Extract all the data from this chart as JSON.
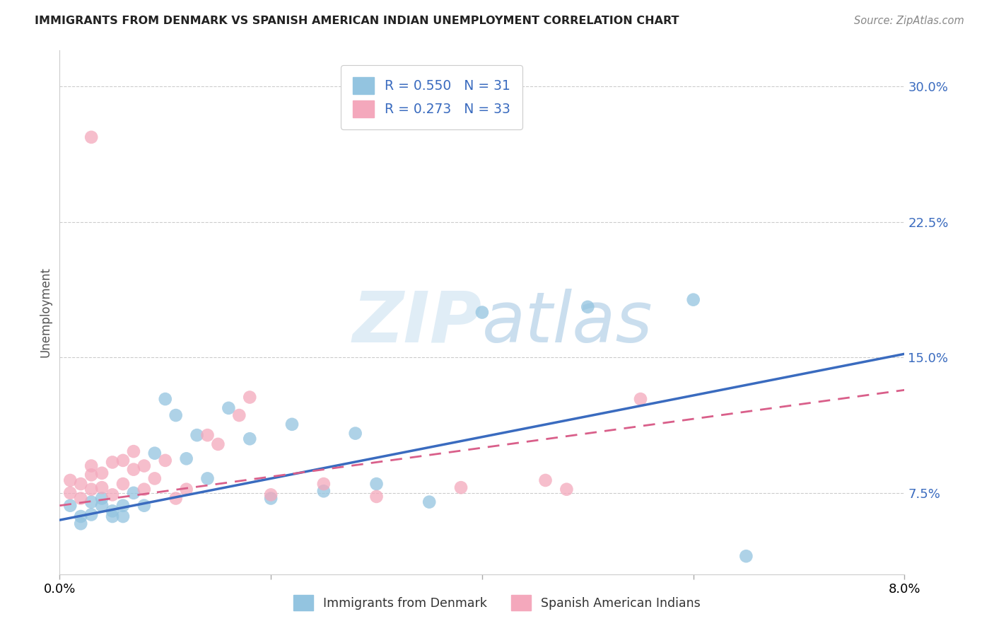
{
  "title": "IMMIGRANTS FROM DENMARK VS SPANISH AMERICAN INDIAN UNEMPLOYMENT CORRELATION CHART",
  "source": "Source: ZipAtlas.com",
  "ylabel": "Unemployment",
  "y_ticks": [
    0.075,
    0.15,
    0.225,
    0.3
  ],
  "y_tick_labels": [
    "7.5%",
    "15.0%",
    "22.5%",
    "30.0%"
  ],
  "x_range": [
    0.0,
    0.08
  ],
  "y_range": [
    0.03,
    0.32
  ],
  "color_blue": "#93c4e0",
  "color_pink": "#f4a8bc",
  "line_blue": "#3a6bbf",
  "line_pink": "#d95f8a",
  "watermark_zip": "ZIP",
  "watermark_atlas": "atlas",
  "denmark_x": [
    0.001,
    0.002,
    0.002,
    0.003,
    0.003,
    0.004,
    0.004,
    0.005,
    0.005,
    0.006,
    0.006,
    0.007,
    0.008,
    0.009,
    0.01,
    0.011,
    0.012,
    0.013,
    0.014,
    0.016,
    0.018,
    0.02,
    0.022,
    0.025,
    0.028,
    0.03,
    0.035,
    0.04,
    0.05,
    0.06,
    0.065
  ],
  "denmark_y": [
    0.068,
    0.062,
    0.058,
    0.063,
    0.07,
    0.068,
    0.072,
    0.062,
    0.065,
    0.062,
    0.068,
    0.075,
    0.068,
    0.097,
    0.127,
    0.118,
    0.094,
    0.107,
    0.083,
    0.122,
    0.105,
    0.072,
    0.113,
    0.076,
    0.108,
    0.08,
    0.07,
    0.175,
    0.178,
    0.182,
    0.04
  ],
  "spanish_x": [
    0.001,
    0.001,
    0.002,
    0.002,
    0.003,
    0.003,
    0.003,
    0.004,
    0.004,
    0.005,
    0.005,
    0.006,
    0.006,
    0.007,
    0.007,
    0.008,
    0.008,
    0.009,
    0.01,
    0.011,
    0.012,
    0.014,
    0.015,
    0.017,
    0.018,
    0.02,
    0.025,
    0.03,
    0.038,
    0.046,
    0.048,
    0.055,
    0.003
  ],
  "spanish_y": [
    0.075,
    0.082,
    0.08,
    0.072,
    0.085,
    0.09,
    0.077,
    0.086,
    0.078,
    0.074,
    0.092,
    0.093,
    0.08,
    0.088,
    0.098,
    0.09,
    0.077,
    0.083,
    0.093,
    0.072,
    0.077,
    0.107,
    0.102,
    0.118,
    0.128,
    0.074,
    0.08,
    0.073,
    0.078,
    0.082,
    0.077,
    0.127,
    0.272
  ],
  "blue_line_x0": 0.0,
  "blue_line_y0": 0.06,
  "blue_line_x1": 0.08,
  "blue_line_y1": 0.152,
  "pink_line_x0": 0.0,
  "pink_line_y0": 0.068,
  "pink_line_x1": 0.08,
  "pink_line_y1": 0.132
}
